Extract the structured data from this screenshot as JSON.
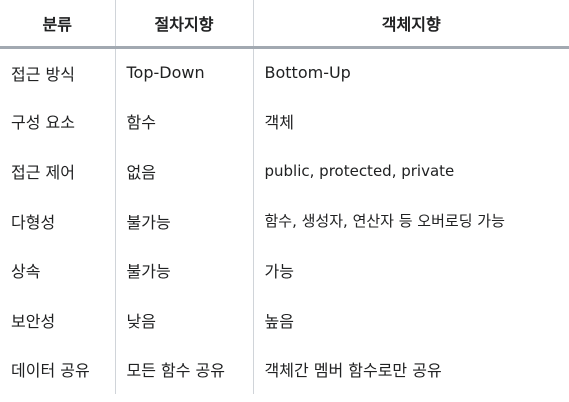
{
  "table": {
    "headers": [
      "분류",
      "절차지향",
      "객체지향"
    ],
    "rows": [
      [
        "접근 방식",
        "Top-Down",
        "Bottom-Up"
      ],
      [
        "구성 요소",
        "함수",
        "객체"
      ],
      [
        "접근 제어",
        "없음",
        "public, protected, private"
      ],
      [
        "다형성",
        "불가능",
        "함수, 생성자, 연산자 등 오버로딩 가능"
      ],
      [
        "상속",
        "불가능",
        "가능"
      ],
      [
        "보안성",
        "낮음",
        "높음"
      ],
      [
        "데이터 공유",
        "모든 함수 공유",
        "객체간 멤버 함수로만 공유"
      ]
    ]
  }
}
